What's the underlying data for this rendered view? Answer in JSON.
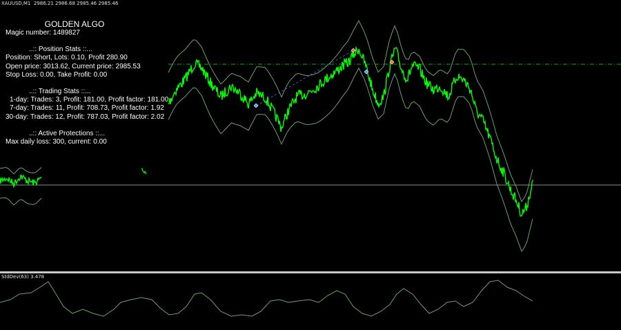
{
  "chart_header": {
    "symbol_text": "XAUUSD,M1  2986.21 2986.68 2985.46 2985.46"
  },
  "indicator_header": {
    "text": "StdDev(63) 3.478"
  },
  "info_panel": {
    "algo_name": "GOLDEN ALGO",
    "magic_number": "Magic number: 1489827",
    "position_heading": "..:: Position Stats ::...",
    "position_line": "Position: Short, Lots: 0.10, Profit 280.90",
    "price_line": "Open price: 3013.62, Current price: 2985.53",
    "sltp_line": "Stop Loss: 0.00, Take Profit: 0.00",
    "trading_heading": "..:: Trading Stats ::...",
    "day1_line": "1-day: Trades: 3, Profit: 181.00, Profit factor: 181.00",
    "day7_line": "7-day: Trades: 11, Profit: 708.73, Profit factor: 1.92",
    "day30_line": "30-day: Trades: 12, Profit: 787.03, Profit factor: 2.02",
    "protections_heading": "..:: Active Protections ::...",
    "max_loss_line": "Max daily loss: 300, current: 0.00"
  },
  "colors": {
    "background": "#000000",
    "price_line": "#00ff00",
    "envelope": "#6f9f6f",
    "level_line": "#9fb89f",
    "trade_line": "#4060d0",
    "marker_sell": "#ff6040",
    "marker_buy": "#40a0ff",
    "stddev_line": "#6f9f6f",
    "text": "#ffffff"
  }
}
